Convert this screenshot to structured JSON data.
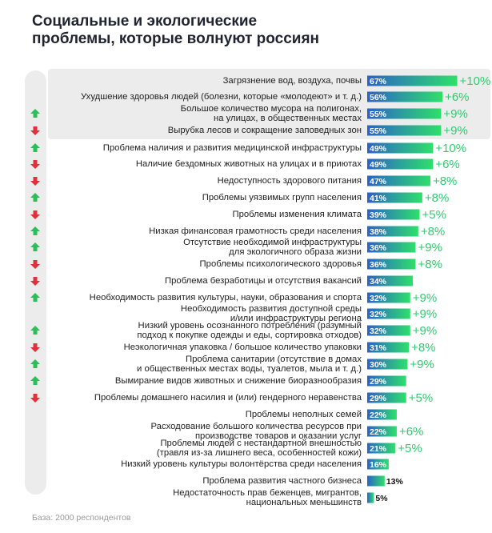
{
  "title": {
    "line1": "Социальные и экологические",
    "line2": "проблемы, которые волнуют россиян"
  },
  "footnote": "База: 2000 респондентов",
  "colors": {
    "bar_start": "#2a62c9",
    "bar_end": "#2ee06a",
    "up_arrow": "#2dbe5a",
    "down_arrow": "#e0303a",
    "change_text": "#2ecc71",
    "rail": "#ececec"
  },
  "chart_data": {
    "type": "bar",
    "orientation": "horizontal",
    "xlim": [
      0,
      100
    ],
    "grid": false,
    "items": [
      {
        "lines": [
          "Загрязнение вод, воздуха, почвы"
        ],
        "value": 67,
        "label": "67%",
        "change": "+10%",
        "trend": "none"
      },
      {
        "lines": [
          "Ухудшение здоровья людей (болезни, которые «молодеют» и т. д.)"
        ],
        "value": 56,
        "label": "56%",
        "change": "+6%",
        "trend": "none"
      },
      {
        "lines": [
          "Большое количество мусора на полигонах,",
          "на улицах, в общественных местах"
        ],
        "value": 55,
        "label": "55%",
        "change": "+9%",
        "trend": "up"
      },
      {
        "lines": [
          "Вырубка лесов и сокращение заповедных зон"
        ],
        "value": 55,
        "label": "55%",
        "change": "+9%",
        "trend": "down"
      },
      {
        "lines": [
          "Проблема наличия и развития медицинской инфраструктуры"
        ],
        "value": 49,
        "label": "49%",
        "change": "+10%",
        "trend": "up"
      },
      {
        "lines": [
          "Наличие бездомных животных на улицах и в приютах"
        ],
        "value": 49,
        "label": "49%",
        "change": "+6%",
        "trend": "down"
      },
      {
        "lines": [
          "Недоступность здорового питания"
        ],
        "value": 47,
        "label": "47%",
        "change": "+8%",
        "trend": "down"
      },
      {
        "lines": [
          "Проблемы уязвимых групп населения"
        ],
        "value": 41,
        "label": "41%",
        "change": "+8%",
        "trend": "up"
      },
      {
        "lines": [
          "Проблемы изменения климата"
        ],
        "value": 39,
        "label": "39%",
        "change": "+5%",
        "trend": "down"
      },
      {
        "lines": [
          "Низкая финансовая грамотность среди населения"
        ],
        "value": 38,
        "label": "38%",
        "change": "+8%",
        "trend": "up"
      },
      {
        "lines": [
          "Отсутствие необходимой инфраструктуры",
          "для экологичного образа жизни"
        ],
        "value": 36,
        "label": "36%",
        "change": "+9%",
        "trend": "up"
      },
      {
        "lines": [
          "Проблемы психологического здоровья"
        ],
        "value": 36,
        "label": "36%",
        "change": "+8%",
        "trend": "down"
      },
      {
        "lines": [
          "Проблема безработицы и отсутствия вакансий"
        ],
        "value": 34,
        "label": "34%",
        "change": "",
        "trend": "down"
      },
      {
        "lines": [
          "Необходимость развития культуры, науки, образования и спорта"
        ],
        "value": 32,
        "label": "32%",
        "change": "+9%",
        "trend": "up"
      },
      {
        "lines": [
          "Необходимость развития доступной среды",
          "и/или инфраструктуры региона"
        ],
        "value": 32,
        "label": "32%",
        "change": "+9%",
        "trend": "none"
      },
      {
        "lines": [
          "Низкий уровень осознанного потребления (разумный",
          "подход к покупке одежды и еды, сортировка отходов)"
        ],
        "value": 32,
        "label": "32%",
        "change": "+9%",
        "trend": "up"
      },
      {
        "lines": [
          "Неэкологичная упаковка / большое количество упаковки"
        ],
        "value": 31,
        "label": "31%",
        "change": "+8%",
        "trend": "down"
      },
      {
        "lines": [
          "Проблема санитарии (отсутствие в домах",
          "и общественных местах воды, туалетов, мыла и т. д.)"
        ],
        "value": 30,
        "label": "30%",
        "change": "+9%",
        "trend": "up"
      },
      {
        "lines": [
          "Вымирание видов животных и снижение биоразнообразия"
        ],
        "value": 29,
        "label": "29%",
        "change": "",
        "trend": "up"
      },
      {
        "lines": [
          "Проблемы домашнего насилия и (или) гендерного неравенства"
        ],
        "value": 29,
        "label": "29%",
        "change": "+5%",
        "trend": "down"
      },
      {
        "lines": [
          "Проблемы неполных семей"
        ],
        "value": 22,
        "label": "22%",
        "change": "",
        "trend": "none"
      },
      {
        "lines": [
          "Расходование большого количества ресурсов при",
          "производстве товаров и оказании услуг"
        ],
        "value": 22,
        "label": "22%",
        "change": "+6%",
        "trend": "none"
      },
      {
        "lines": [
          "Проблемы людей с нестандартной внешностью",
          "(травля из-за лишнего веса, особенностей кожи)"
        ],
        "value": 21,
        "label": "21%",
        "change": "+5%",
        "trend": "none"
      },
      {
        "lines": [
          "Низкий уровень культуры волонтёрства среди населения"
        ],
        "value": 16,
        "label": "16%",
        "change": "",
        "trend": "none"
      },
      {
        "lines": [
          "Проблема развития частного бизнеса"
        ],
        "value": 13,
        "label": "13%",
        "change": "",
        "trend": "none"
      },
      {
        "lines": [
          "Недостаточность прав беженцев, мигрантов,",
          "национальных меньшинств"
        ],
        "value": 5,
        "label": "5%",
        "change": "",
        "trend": "none"
      }
    ]
  }
}
